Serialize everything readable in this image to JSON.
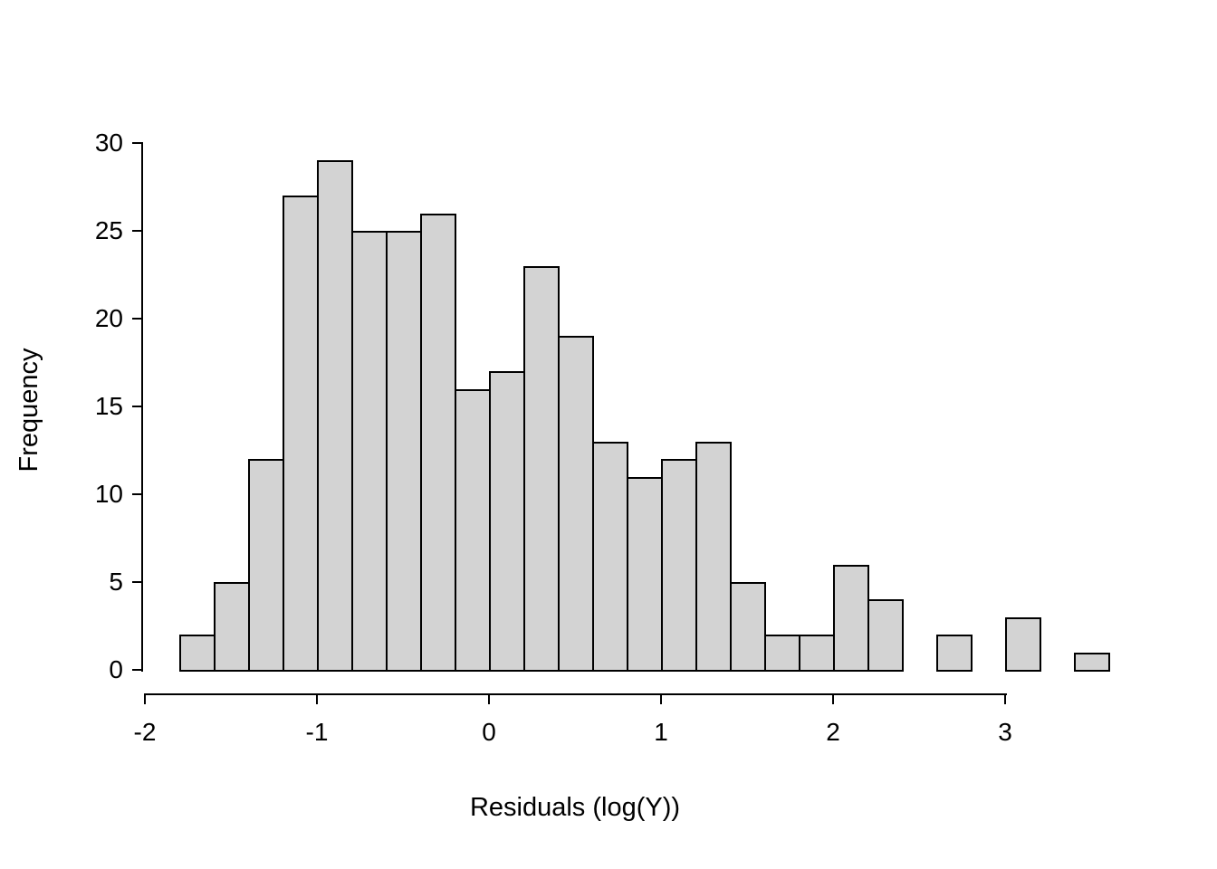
{
  "chart_data": {
    "type": "bar",
    "subtype": "histogram",
    "xlabel": "Residuals (log(Y))",
    "ylabel": "Frequency",
    "bin_start": -1.8,
    "bin_width": 0.2,
    "values": [
      2,
      5,
      12,
      27,
      29,
      25,
      25,
      26,
      16,
      17,
      23,
      19,
      13,
      11,
      12,
      13,
      5,
      2,
      2,
      6,
      4,
      0,
      2,
      0,
      3,
      0,
      1
    ],
    "x_ticks": [
      -2,
      -1,
      0,
      1,
      2,
      3
    ],
    "y_ticks": [
      0,
      5,
      10,
      15,
      20,
      25,
      30
    ],
    "xlim": [
      -2,
      3.6
    ],
    "ylim": [
      0,
      30
    ],
    "grid": false,
    "legend": false,
    "background": "#ffffff",
    "bar_fill": "#d3d3d3",
    "bar_border": "#000000",
    "axis_color": "#000000"
  }
}
